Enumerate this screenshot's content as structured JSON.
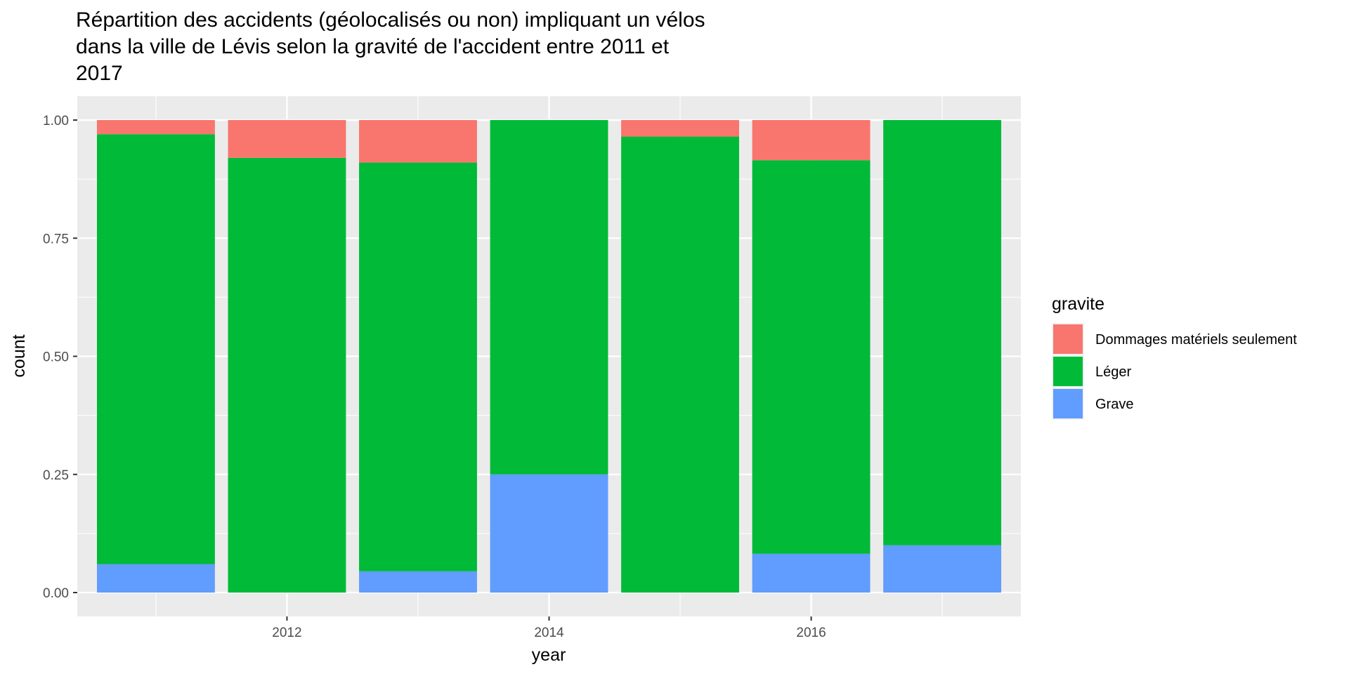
{
  "chart_data": {
    "type": "bar",
    "stacked": true,
    "position": "fill",
    "title": "Répartition des accidents (géolocalisés ou non) impliquant un vélos dans la ville de Lévis selon la gravité de l'accident entre 2011 et 2017",
    "title_lines": [
      "Répartition des accidents (géolocalisés ou non) impliquant un vélos",
      "dans la ville de Lévis selon la gravité de l'accident entre 2011 et",
      "2017"
    ],
    "xlabel": "year",
    "ylabel": "count",
    "categories": [
      2011,
      2012,
      2013,
      2014,
      2015,
      2016,
      2017
    ],
    "x_ticks": [
      "2012",
      "2014",
      "2016"
    ],
    "y_ticks": [
      "0.00",
      "0.25",
      "0.50",
      "0.75",
      "1.00"
    ],
    "ylim": [
      0,
      1
    ],
    "xlim": [
      2010.4,
      2017.6
    ],
    "grid": true,
    "legend_title": "gravite",
    "legend_position": "right",
    "series": [
      {
        "name": "Dommages matériels seulement",
        "color": "#F8766D",
        "values": [
          0.03,
          0.08,
          0.09,
          0.0,
          0.035,
          0.085,
          0.0
        ]
      },
      {
        "name": "Léger",
        "color": "#00BA38",
        "values": [
          0.91,
          0.92,
          0.865,
          0.75,
          0.965,
          0.833,
          0.9
        ]
      },
      {
        "name": "Grave",
        "color": "#619CFF",
        "values": [
          0.06,
          0.0,
          0.045,
          0.25,
          0.0,
          0.082,
          0.1
        ]
      }
    ]
  }
}
